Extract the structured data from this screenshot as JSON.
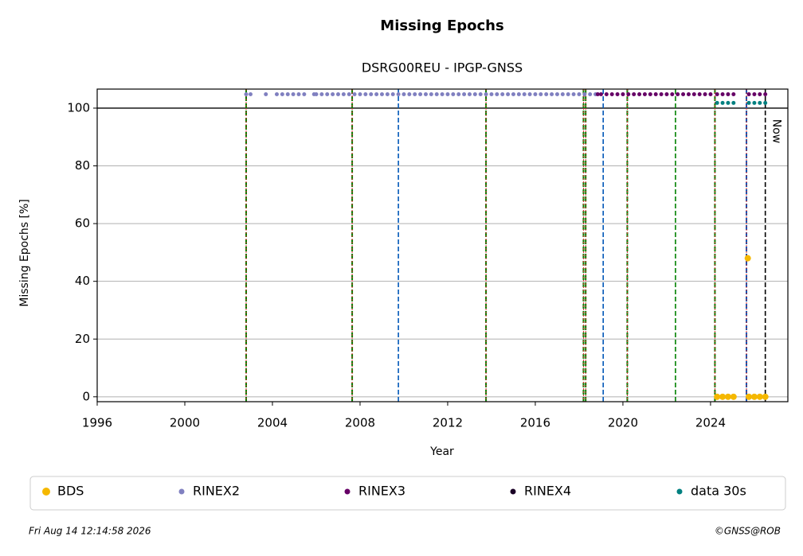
{
  "chart_data": {
    "type": "scatter",
    "title": "Missing Epochs",
    "subtitle": "DSRG00REU - IPGP-GNSS",
    "x_label": "Year",
    "y_label": "Missing Epochs [%]",
    "xlim": [
      1996,
      2027.53
    ],
    "ylim": [
      -1.7,
      106.6
    ],
    "xticks": [
      1996,
      2000,
      2004,
      2008,
      2012,
      2016,
      2020,
      2024
    ],
    "yticks": [
      0,
      20,
      40,
      60,
      80,
      100
    ],
    "grid": true,
    "hline": 100,
    "now": {
      "x": 2026.5,
      "label": "Now"
    },
    "markers": [
      {
        "x": 2002.8,
        "color": "#d62728",
        "color2": "#008000"
      },
      {
        "x": 2007.64,
        "color": "#d62728",
        "color2": "#008000"
      },
      {
        "x": 2009.75,
        "color": "#0057b8"
      },
      {
        "x": 2013.75,
        "color": "#d62728",
        "color2": "#008000"
      },
      {
        "x": 2018.2,
        "color": "#d62728",
        "color2": "#008000"
      },
      {
        "x": 2018.3,
        "color": "#d62728",
        "color2": "#008000"
      },
      {
        "x": 2019.1,
        "color": "#0057b8"
      },
      {
        "x": 2020.2,
        "color": "#d62728",
        "color2": "#008000"
      },
      {
        "x": 2022.4,
        "color": "#008000"
      },
      {
        "x": 2024.2,
        "color": "#d62728",
        "color2": "#008000"
      },
      {
        "x": 2025.64,
        "color": "#d62728",
        "color2": "#0057b8"
      }
    ],
    "legend": "bottom",
    "series": [
      {
        "name": "BDS",
        "color": "#f5b800",
        "size": 4,
        "x": [
          2024.3,
          2024.55,
          2024.8,
          2025.05,
          2025.7,
          2025.75,
          2026.0,
          2026.25,
          2026.5
        ],
        "values": [
          0,
          0,
          0,
          0,
          48,
          0,
          0,
          0,
          0
        ]
      },
      {
        "name": "RINEX2",
        "color": "#8080c0",
        "size": 2.5,
        "x": [
          2002.8,
          2003.0,
          2003.7,
          2004.2,
          2004.45,
          2004.7,
          2004.95,
          2005.2,
          2005.45,
          2005.9,
          2006.0,
          2006.25,
          2006.5,
          2006.75,
          2007.0,
          2007.25,
          2007.5,
          2007.75,
          2008.0,
          2008.25,
          2008.5,
          2008.75,
          2009.0,
          2009.25,
          2009.5,
          2009.75,
          2010.0,
          2010.25,
          2010.5,
          2010.75,
          2011.0,
          2011.25,
          2011.5,
          2011.75,
          2012.0,
          2012.25,
          2012.5,
          2012.75,
          2013.0,
          2013.25,
          2013.5,
          2013.75,
          2014.0,
          2014.25,
          2014.5,
          2014.75,
          2015.0,
          2015.25,
          2015.5,
          2015.75,
          2016.0,
          2016.25,
          2016.5,
          2016.75,
          2017.0,
          2017.25,
          2017.5,
          2017.75,
          2018.0,
          2018.25,
          2018.5,
          2018.75
        ],
        "values": [
          104.8,
          104.8,
          104.8,
          104.8,
          104.8,
          104.8,
          104.8,
          104.8,
          104.8,
          104.8,
          104.8,
          104.8,
          104.8,
          104.8,
          104.8,
          104.8,
          104.8,
          104.8,
          104.8,
          104.8,
          104.8,
          104.8,
          104.8,
          104.8,
          104.8,
          104.8,
          104.8,
          104.8,
          104.8,
          104.8,
          104.8,
          104.8,
          104.8,
          104.8,
          104.8,
          104.8,
          104.8,
          104.8,
          104.8,
          104.8,
          104.8,
          104.8,
          104.8,
          104.8,
          104.8,
          104.8,
          104.8,
          104.8,
          104.8,
          104.8,
          104.8,
          104.8,
          104.8,
          104.8,
          104.8,
          104.8,
          104.8,
          104.8,
          104.8,
          104.8,
          104.8,
          104.8
        ]
      },
      {
        "name": "RINEX3",
        "color": "#660066",
        "size": 2.5,
        "x": [
          2018.85,
          2019.0,
          2019.25,
          2019.5,
          2019.75,
          2020.0,
          2020.25,
          2020.5,
          2020.75,
          2021.0,
          2021.25,
          2021.5,
          2021.75,
          2022.0,
          2022.25,
          2022.5,
          2022.75,
          2023.0,
          2023.25,
          2023.5,
          2023.75,
          2024.0,
          2024.3,
          2024.55,
          2024.8,
          2025.05,
          2025.75,
          2026.0,
          2026.25,
          2026.5
        ],
        "values": [
          104.8,
          104.8,
          104.8,
          104.8,
          104.8,
          104.8,
          104.8,
          104.8,
          104.8,
          104.8,
          104.8,
          104.8,
          104.8,
          104.8,
          104.8,
          104.8,
          104.8,
          104.8,
          104.8,
          104.8,
          104.8,
          104.8,
          104.8,
          104.8,
          104.8,
          104.8,
          104.8,
          104.8,
          104.8,
          104.8
        ]
      },
      {
        "name": "RINEX4",
        "color": "#1a0026",
        "size": 2.5,
        "x": [],
        "values": []
      },
      {
        "name": "data 30s",
        "color": "#008080",
        "size": 2.5,
        "x": [
          2024.3,
          2024.55,
          2024.8,
          2025.05,
          2025.75,
          2026.0,
          2026.25,
          2026.5
        ],
        "values": [
          101.8,
          101.8,
          101.8,
          101.8,
          101.8,
          101.8,
          101.8,
          101.8
        ]
      }
    ],
    "footer_left": "Fri Aug 14 12:14:58 2026",
    "footer_right": "©GNSS@ROB"
  }
}
